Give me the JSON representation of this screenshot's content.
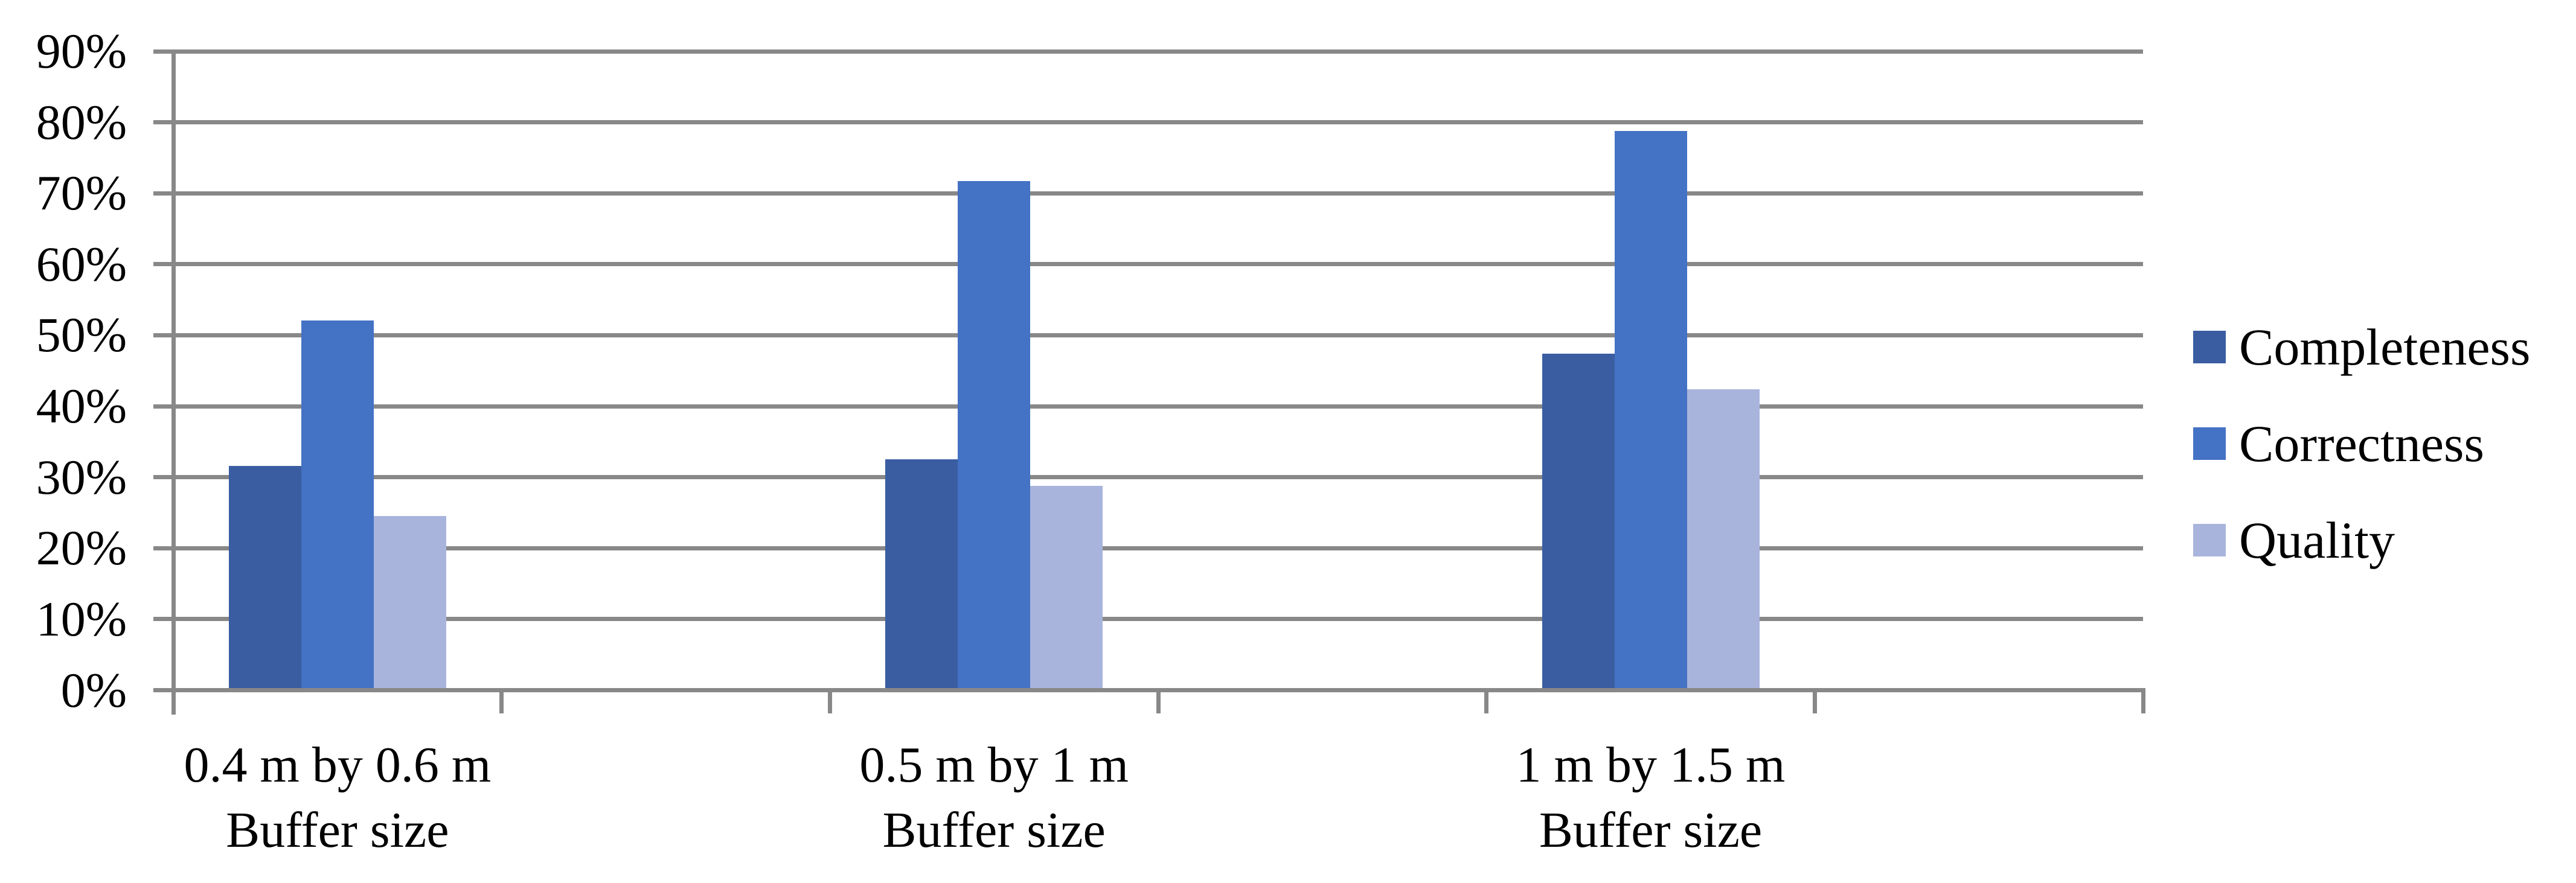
{
  "chart_data": {
    "type": "bar",
    "title": "",
    "categories": [
      {
        "label": "0.4 m by 0.6 m",
        "sublabel": "Buffer size"
      },
      {
        "label": "0.5 m by 1 m",
        "sublabel": "Buffer size"
      },
      {
        "label": "1 m by 1.5 m",
        "sublabel": "Buffer size"
      }
    ],
    "series": [
      {
        "name": "Completeness",
        "color": "#3A5DA2",
        "values": [
          31.6,
          32.5,
          47.4
        ]
      },
      {
        "name": "Correctness",
        "color": "#4472C4",
        "values": [
          52.1,
          71.7,
          78.8
        ]
      },
      {
        "name": "Quality",
        "color": "#A9B4DD",
        "values": [
          24.5,
          28.8,
          42.4
        ]
      }
    ],
    "y_axis": {
      "min": 0,
      "max": 90,
      "step": 10,
      "unit": "%",
      "tick_labels": [
        "0%",
        "10%",
        "20%",
        "30%",
        "40%",
        "50%",
        "60%",
        "70%",
        "80%",
        "90%"
      ]
    },
    "legend": {
      "position": "right",
      "entries": [
        "Completeness",
        "Correctness",
        "Quality"
      ]
    },
    "grid": {
      "show": true,
      "color": "#888888"
    }
  }
}
